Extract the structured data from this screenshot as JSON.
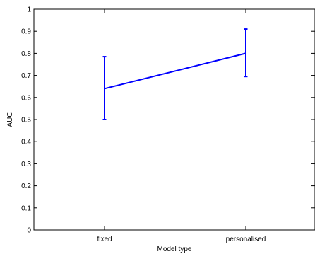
{
  "chart_data": {
    "type": "line",
    "title": "",
    "xlabel": "Model type",
    "ylabel": "AUC",
    "categories": [
      "fixed",
      "personalised"
    ],
    "ylim": [
      0,
      1
    ],
    "yticks": [
      0,
      0.1,
      0.2,
      0.3,
      0.4,
      0.5,
      0.6,
      0.7,
      0.8,
      0.9,
      1
    ],
    "ytick_labels": [
      "0",
      "0.1",
      "0.2",
      "0.3",
      "0.4",
      "0.5",
      "0.6",
      "0.7",
      "0.8",
      "0.9",
      "1"
    ],
    "grid": false,
    "series": [
      {
        "values": [
          0.64,
          0.8
        ],
        "err_low": [
          0.5,
          0.695
        ],
        "err_high": [
          0.785,
          0.91
        ],
        "color": "#0000ff"
      }
    ]
  }
}
